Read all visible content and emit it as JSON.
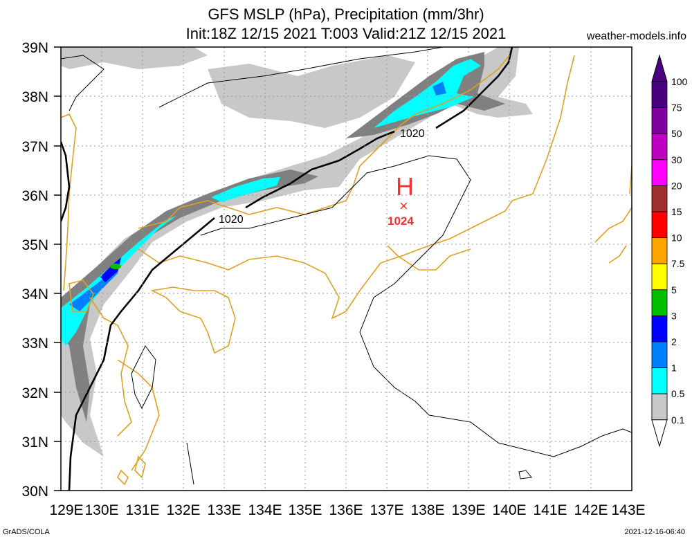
{
  "header": {
    "title": "GFS MSLP (hPa), Precipitation (mm/3hr)",
    "subtitle": "Init:18Z 12/15 2021 T:003 Valid:21Z 12/15 2021",
    "site": "weather-models.info"
  },
  "footer": {
    "left": "GrADS/COLA",
    "right": "2021-12-16-06:40"
  },
  "map": {
    "lat_labels": [
      "39N",
      "38N",
      "37N",
      "36N",
      "35N",
      "34N",
      "33N",
      "32N",
      "31N",
      "30N"
    ],
    "lon_labels": [
      "129E",
      "130E",
      "131E",
      "132E",
      "133E",
      "134E",
      "135E",
      "136E",
      "137E",
      "138E",
      "139E",
      "140E",
      "141E",
      "142E",
      "143E"
    ],
    "isobar_labels": [
      "1020",
      "1020"
    ],
    "high": {
      "symbol": "H",
      "marker": "×",
      "value": "1024",
      "color": "#ee3333"
    },
    "coast_color": "#e0a020"
  },
  "legend": {
    "labels": [
      "0.1",
      "0.5",
      "1",
      "2",
      "3",
      "5",
      "7.5",
      "10",
      "15",
      "20",
      "30",
      "50",
      "75",
      "100"
    ],
    "colors": [
      "#c8c8c8",
      "#808080",
      "#00ffff",
      "#0080ff",
      "#0000ff",
      "#00c000",
      "#ffff00",
      "#ffa500",
      "#ff0000",
      "#a03030",
      "#ff00ff",
      "#c000c0",
      "#8000a0",
      "#4b0080"
    ]
  }
}
